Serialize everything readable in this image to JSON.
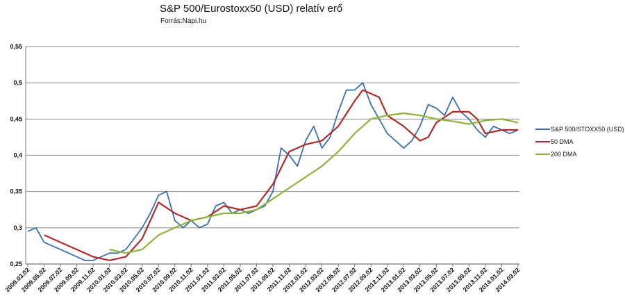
{
  "chart_data": {
    "type": "line",
    "title": "S&P 500/Eurostoxx50 (USD) relatív erő",
    "subtitle": "Forrás:Napi.hu",
    "ylim": [
      0.25,
      0.55
    ],
    "y_ticks": [
      "0,25",
      "0,3",
      "0,35",
      "0,4",
      "0,45",
      "0,5",
      "0,55"
    ],
    "y_tick_values": [
      0.25,
      0.3,
      0.35,
      0.4,
      0.45,
      0.5,
      0.55
    ],
    "x_range": [
      "2009.03.02",
      "2014.03.02"
    ],
    "x_ticks": [
      "2009.03.02",
      "2009.05.02",
      "2009.07.02",
      "2009.09.02",
      "2009.11.02",
      "2010.01.02",
      "2010.03.02",
      "2010.05.02",
      "2010.07.02",
      "2010.09.02",
      "2010.11.02",
      "2011.01.02",
      "2011.03.02",
      "2011.05.02",
      "2011.07.02",
      "2011.09.02",
      "2011.11.02",
      "2012.01.02",
      "2012.03.02",
      "2012.05.02",
      "2012.07.02",
      "2012.09.02",
      "2012.11.02",
      "2013.01.02",
      "2013.03.02",
      "2013.05.02",
      "2013.07.02",
      "2013.09.02",
      "2013.11.02",
      "2014.01.02",
      "2014.03.02"
    ],
    "grid": "horizontal",
    "legend_position": "right",
    "series": [
      {
        "name": "S&P 500/STOXX50 (USD)",
        "color": "#3a6fb0",
        "points": [
          [
            "2009.03",
            0.295
          ],
          [
            "2009.04",
            0.3
          ],
          [
            "2009.05",
            0.28
          ],
          [
            "2009.06",
            0.275
          ],
          [
            "2009.07",
            0.27
          ],
          [
            "2009.08",
            0.265
          ],
          [
            "2009.09",
            0.26
          ],
          [
            "2009.10",
            0.255
          ],
          [
            "2009.11",
            0.255
          ],
          [
            "2009.12",
            0.26
          ],
          [
            "2010.01",
            0.265
          ],
          [
            "2010.02",
            0.265
          ],
          [
            "2010.03",
            0.27
          ],
          [
            "2010.04",
            0.285
          ],
          [
            "2010.05",
            0.3
          ],
          [
            "2010.06",
            0.32
          ],
          [
            "2010.07",
            0.345
          ],
          [
            "2010.08",
            0.35
          ],
          [
            "2010.09",
            0.31
          ],
          [
            "2010.10",
            0.3
          ],
          [
            "2010.11",
            0.31
          ],
          [
            "2010.12",
            0.3
          ],
          [
            "2011.01",
            0.305
          ],
          [
            "2011.02",
            0.33
          ],
          [
            "2011.03",
            0.335
          ],
          [
            "2011.04",
            0.32
          ],
          [
            "2011.05",
            0.325
          ],
          [
            "2011.06",
            0.32
          ],
          [
            "2011.07",
            0.325
          ],
          [
            "2011.08",
            0.33
          ],
          [
            "2011.09",
            0.35
          ],
          [
            "2011.10",
            0.41
          ],
          [
            "2011.11",
            0.4
          ],
          [
            "2011.12",
            0.385
          ],
          [
            "2012.01",
            0.42
          ],
          [
            "2012.02",
            0.44
          ],
          [
            "2012.03",
            0.41
          ],
          [
            "2012.04",
            0.425
          ],
          [
            "2012.05",
            0.46
          ],
          [
            "2012.06",
            0.49
          ],
          [
            "2012.07",
            0.49
          ],
          [
            "2012.08",
            0.5
          ],
          [
            "2012.09",
            0.47
          ],
          [
            "2012.10",
            0.45
          ],
          [
            "2012.11",
            0.43
          ],
          [
            "2012.12",
            0.42
          ],
          [
            "2013.01",
            0.41
          ],
          [
            "2013.02",
            0.42
          ],
          [
            "2013.03",
            0.44
          ],
          [
            "2013.04",
            0.47
          ],
          [
            "2013.05",
            0.465
          ],
          [
            "2013.06",
            0.455
          ],
          [
            "2013.07",
            0.48
          ],
          [
            "2013.08",
            0.46
          ],
          [
            "2013.09",
            0.45
          ],
          [
            "2013.10",
            0.435
          ],
          [
            "2013.11",
            0.425
          ],
          [
            "2013.12",
            0.44
          ],
          [
            "2014.01",
            0.435
          ],
          [
            "2014.02",
            0.43
          ],
          [
            "2014.03",
            0.435
          ]
        ]
      },
      {
        "name": "50 DMA",
        "color": "#b02a2a",
        "points": [
          [
            "2009.05",
            0.29
          ],
          [
            "2009.07",
            0.28
          ],
          [
            "2009.09",
            0.27
          ],
          [
            "2009.11",
            0.26
          ],
          [
            "2010.01",
            0.255
          ],
          [
            "2010.03",
            0.26
          ],
          [
            "2010.05",
            0.285
          ],
          [
            "2010.07",
            0.335
          ],
          [
            "2010.09",
            0.32
          ],
          [
            "2010.11",
            0.31
          ],
          [
            "2011.01",
            0.315
          ],
          [
            "2011.03",
            0.33
          ],
          [
            "2011.05",
            0.325
          ],
          [
            "2011.07",
            0.33
          ],
          [
            "2011.09",
            0.36
          ],
          [
            "2011.11",
            0.405
          ],
          [
            "2012.01",
            0.415
          ],
          [
            "2012.03",
            0.42
          ],
          [
            "2012.05",
            0.44
          ],
          [
            "2012.07",
            0.475
          ],
          [
            "2012.08",
            0.49
          ],
          [
            "2012.10",
            0.48
          ],
          [
            "2012.11",
            0.455
          ],
          [
            "2013.01",
            0.44
          ],
          [
            "2013.03",
            0.42
          ],
          [
            "2013.04",
            0.425
          ],
          [
            "2013.05",
            0.445
          ],
          [
            "2013.07",
            0.46
          ],
          [
            "2013.09",
            0.46
          ],
          [
            "2013.10",
            0.45
          ],
          [
            "2013.11",
            0.43
          ],
          [
            "2014.01",
            0.435
          ],
          [
            "2014.03",
            0.435
          ]
        ]
      },
      {
        "name": "200 DMA",
        "color": "#8db33a",
        "points": [
          [
            "2010.01",
            0.27
          ],
          [
            "2010.03",
            0.265
          ],
          [
            "2010.05",
            0.27
          ],
          [
            "2010.07",
            0.29
          ],
          [
            "2010.09",
            0.3
          ],
          [
            "2010.11",
            0.31
          ],
          [
            "2011.01",
            0.315
          ],
          [
            "2011.03",
            0.32
          ],
          [
            "2011.05",
            0.32
          ],
          [
            "2011.07",
            0.325
          ],
          [
            "2011.09",
            0.34
          ],
          [
            "2011.11",
            0.355
          ],
          [
            "2012.01",
            0.37
          ],
          [
            "2012.03",
            0.385
          ],
          [
            "2012.05",
            0.405
          ],
          [
            "2012.07",
            0.43
          ],
          [
            "2012.09",
            0.45
          ],
          [
            "2012.11",
            0.455
          ],
          [
            "2013.01",
            0.458
          ],
          [
            "2013.03",
            0.455
          ],
          [
            "2013.05",
            0.45
          ],
          [
            "2013.07",
            0.447
          ],
          [
            "2013.09",
            0.443
          ],
          [
            "2013.11",
            0.448
          ],
          [
            "2014.01",
            0.45
          ],
          [
            "2014.03",
            0.445
          ]
        ]
      }
    ]
  }
}
